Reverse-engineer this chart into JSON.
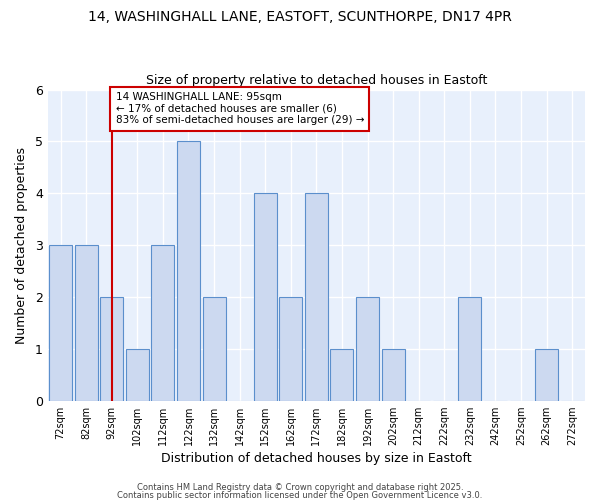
{
  "title_line1": "14, WASHINGHALL LANE, EASTOFT, SCUNTHORPE, DN17 4PR",
  "title_line2": "Size of property relative to detached houses in Eastoft",
  "xlabel": "Distribution of detached houses by size in Eastoft",
  "ylabel": "Number of detached properties",
  "categories": [
    "72sqm",
    "82sqm",
    "92sqm",
    "102sqm",
    "112sqm",
    "122sqm",
    "132sqm",
    "142sqm",
    "152sqm",
    "162sqm",
    "172sqm",
    "182sqm",
    "192sqm",
    "202sqm",
    "212sqm",
    "222sqm",
    "232sqm",
    "242sqm",
    "252sqm",
    "262sqm",
    "272sqm"
  ],
  "values": [
    3,
    3,
    2,
    1,
    3,
    5,
    2,
    0,
    4,
    2,
    4,
    1,
    2,
    1,
    0,
    0,
    2,
    0,
    0,
    1,
    0
  ],
  "bar_color": "#ccd9f0",
  "bar_edge_color": "#5b8fcc",
  "background_color": "#ffffff",
  "plot_bg_color": "#e8f0fc",
  "grid_color": "#ffffff",
  "red_line_x": "92sqm",
  "annotation_line1": "14 WASHINGHALL LANE: 95sqm",
  "annotation_line2": "← 17% of detached houses are smaller (6)",
  "annotation_line3": "83% of semi-detached houses are larger (29) →",
  "annotation_box_color": "#ffffff",
  "annotation_box_edge_color": "#cc0000",
  "ylim": [
    0,
    6
  ],
  "yticks": [
    0,
    1,
    2,
    3,
    4,
    5,
    6
  ],
  "footer_line1": "Contains HM Land Registry data © Crown copyright and database right 2025.",
  "footer_line2": "Contains public sector information licensed under the Open Government Licence v3.0."
}
